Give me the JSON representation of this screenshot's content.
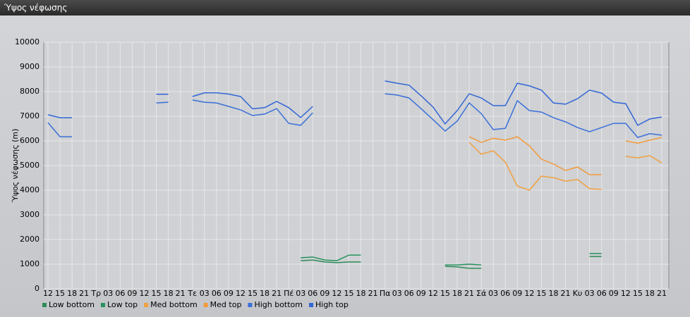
{
  "window": {
    "title": "Ύψος νέφωσης"
  },
  "chart_data": {
    "type": "line",
    "y_label": "Ύψος νέφωσης (m)",
    "categories": [
      "12",
      "15",
      "18",
      "21",
      "Τρ",
      "03",
      "06",
      "09",
      "12",
      "15",
      "18",
      "21",
      "Τε",
      "03",
      "06",
      "09",
      "12",
      "15",
      "18",
      "21",
      "Πέ",
      "03",
      "06",
      "09",
      "12",
      "15",
      "18",
      "21",
      "Πα",
      "03",
      "06",
      "09",
      "12",
      "15",
      "18",
      "21",
      "Σά",
      "03",
      "06",
      "09",
      "12",
      "15",
      "18",
      "21",
      "Κυ",
      "03",
      "06",
      "09",
      "12",
      "15",
      "18",
      "21"
    ],
    "ylim": [
      0,
      10000
    ],
    "yticks": [
      0,
      1000,
      2000,
      3000,
      4000,
      5000,
      6000,
      7000,
      8000,
      9000,
      10000
    ],
    "grid": true,
    "series": [
      {
        "name": "Low bottom",
        "color": "#2e8b57",
        "values": [
          null,
          null,
          null,
          null,
          null,
          null,
          null,
          null,
          null,
          null,
          null,
          null,
          null,
          null,
          null,
          null,
          null,
          null,
          null,
          null,
          null,
          1140,
          1170,
          1090,
          1060,
          1090,
          1090,
          null,
          null,
          null,
          null,
          null,
          null,
          910,
          890,
          830,
          830,
          null,
          null,
          null,
          null,
          null,
          null,
          null,
          null,
          1310,
          1310,
          null,
          null,
          null,
          null,
          null
        ]
      },
      {
        "name": "Low top",
        "color": "#27935e",
        "values": [
          null,
          null,
          null,
          null,
          null,
          null,
          null,
          null,
          null,
          null,
          null,
          null,
          null,
          null,
          null,
          null,
          null,
          null,
          null,
          null,
          null,
          1260,
          1290,
          1170,
          1140,
          1370,
          1370,
          null,
          null,
          null,
          null,
          null,
          null,
          970,
          970,
          1000,
          970,
          null,
          null,
          null,
          null,
          null,
          null,
          null,
          null,
          1430,
          1430,
          null,
          null,
          null,
          null,
          null
        ]
      },
      {
        "name": "Med bottom",
        "color": "#f0a040",
        "values": [
          null,
          null,
          null,
          null,
          null,
          null,
          null,
          null,
          null,
          null,
          null,
          null,
          null,
          null,
          null,
          null,
          null,
          null,
          null,
          null,
          null,
          null,
          null,
          null,
          null,
          null,
          null,
          null,
          null,
          null,
          null,
          null,
          null,
          null,
          null,
          5940,
          5460,
          5600,
          5140,
          4170,
          4000,
          4570,
          4510,
          4370,
          4430,
          4060,
          4030,
          null,
          5370,
          5310,
          5400,
          5110
        ]
      },
      {
        "name": "Med top",
        "color": "#f39a3a",
        "values": [
          null,
          null,
          null,
          null,
          null,
          null,
          null,
          null,
          null,
          null,
          null,
          null,
          null,
          null,
          null,
          null,
          null,
          null,
          null,
          null,
          null,
          null,
          null,
          null,
          null,
          null,
          null,
          null,
          null,
          null,
          null,
          null,
          null,
          null,
          null,
          6170,
          5940,
          6110,
          6030,
          6170,
          5800,
          5260,
          5060,
          4800,
          4940,
          4630,
          4630,
          null,
          6000,
          5910,
          6030,
          6140
        ]
      },
      {
        "name": "High bottom",
        "color": "#3a6fd8",
        "values": [
          6740,
          6170,
          6170,
          null,
          null,
          null,
          null,
          null,
          null,
          7540,
          7570,
          null,
          7660,
          7570,
          7540,
          7400,
          7260,
          7030,
          7090,
          7310,
          6710,
          6630,
          7140,
          null,
          null,
          null,
          null,
          null,
          7910,
          7860,
          7740,
          7310,
          6860,
          6400,
          6800,
          7540,
          7110,
          6460,
          6510,
          7630,
          7230,
          7170,
          6940,
          6770,
          6540,
          6370,
          6540,
          6710,
          6710,
          6140,
          6290,
          6230
        ]
      },
      {
        "name": "High top",
        "color": "#3366d6",
        "values": [
          7060,
          6940,
          6940,
          null,
          null,
          null,
          null,
          null,
          null,
          7890,
          7890,
          null,
          7800,
          7950,
          7950,
          7900,
          7800,
          7300,
          7350,
          7600,
          7350,
          6950,
          7400,
          null,
          null,
          null,
          null,
          null,
          8430,
          8340,
          8260,
          7830,
          7370,
          6690,
          7230,
          7910,
          7740,
          7430,
          7430,
          8340,
          8230,
          8060,
          7540,
          7490,
          7710,
          8060,
          7940,
          7570,
          7510,
          6630,
          6890,
          6970
        ]
      }
    ]
  }
}
